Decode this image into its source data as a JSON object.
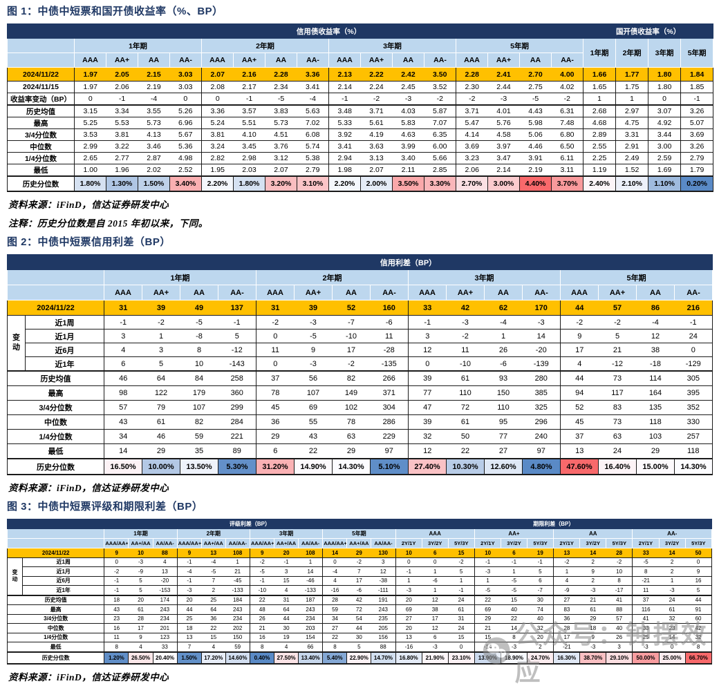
{
  "colors": {
    "header_navy": "#1F3864",
    "header_blue": "#BDD7EE",
    "highlight_orange": "#FFC000",
    "scale_low": "#5A8AC6",
    "scale_mid": "#FCFCFF",
    "scale_high": "#F8696B"
  },
  "watermark": {
    "icon": "wechat-icon",
    "text": "公众号：钟摆效应"
  },
  "figure1": {
    "title": "图 1：中债中短票和国开债收益率（%、BP）",
    "source": "资料来源：iFinD，信达证券研发中心",
    "note": "注释：历史分位数是自 2015 年初以来，下同。",
    "table": {
      "section_titles": [
        "信用债收益率（%）",
        "国开债收益率（%）"
      ],
      "tenor_groups": [
        "1年期",
        "2年期",
        "3年期",
        "5年期"
      ],
      "rating_cols": [
        "AAA",
        "AA+",
        "AA",
        "AA-"
      ],
      "gk_tenor_cols": [
        "1年期",
        "2年期",
        "3年期",
        "5年期"
      ],
      "rows": [
        {
          "label": "2024/11/22",
          "style": "current",
          "values": [
            "1.97",
            "2.05",
            "2.15",
            "3.03",
            "2.07",
            "2.16",
            "2.28",
            "3.36",
            "2.13",
            "2.22",
            "2.42",
            "3.50",
            "2.28",
            "2.41",
            "2.70",
            "4.00",
            "1.66",
            "1.77",
            "1.80",
            "1.84"
          ]
        },
        {
          "label": "2024/11/15",
          "style": "plain",
          "values": [
            "1.97",
            "2.06",
            "2.19",
            "3.03",
            "2.08",
            "2.17",
            "2.34",
            "3.41",
            "2.14",
            "2.24",
            "2.45",
            "3.52",
            "2.30",
            "2.44",
            "2.75",
            "4.02",
            "1.65",
            "1.75",
            "1.80",
            "1.85"
          ]
        },
        {
          "label": "收益率变动（BP）",
          "style": "plain",
          "values": [
            "0",
            "-1",
            "-4",
            "0",
            "0",
            "-1",
            "-5",
            "-4",
            "-1",
            "-2",
            "-3",
            "-2",
            "-2",
            "-3",
            "-5",
            "-2",
            "1",
            "1",
            "0",
            "-1"
          ]
        },
        {
          "label": "历史均值",
          "style": "plain",
          "sep": true,
          "values": [
            "3.15",
            "3.34",
            "3.55",
            "5.26",
            "3.36",
            "3.57",
            "3.83",
            "5.63",
            "3.48",
            "3.71",
            "4.03",
            "5.87",
            "3.71",
            "4.01",
            "4.43",
            "6.31",
            "2.68",
            "2.97",
            "3.07",
            "3.26"
          ]
        },
        {
          "label": "最高",
          "style": "plain",
          "values": [
            "5.25",
            "5.53",
            "5.73",
            "6.96",
            "5.24",
            "5.51",
            "5.73",
            "7.02",
            "5.33",
            "5.61",
            "5.83",
            "7.07",
            "5.47",
            "5.76",
            "5.98",
            "7.48",
            "4.68",
            "4.75",
            "4.92",
            "5.07"
          ]
        },
        {
          "label": "3/4分位数",
          "style": "plain",
          "values": [
            "3.53",
            "3.81",
            "4.13",
            "5.67",
            "3.81",
            "4.10",
            "4.51",
            "6.08",
            "3.92",
            "4.19",
            "4.63",
            "6.35",
            "4.14",
            "4.58",
            "5.06",
            "6.80",
            "2.89",
            "3.31",
            "3.44",
            "3.69"
          ]
        },
        {
          "label": "中位数",
          "style": "plain",
          "values": [
            "2.99",
            "3.22",
            "3.46",
            "5.36",
            "3.24",
            "3.45",
            "3.76",
            "5.74",
            "3.41",
            "3.63",
            "3.99",
            "6.00",
            "3.69",
            "3.97",
            "4.46",
            "6.50",
            "2.55",
            "2.91",
            "3.00",
            "3.26"
          ]
        },
        {
          "label": "1/4分位数",
          "style": "plain",
          "values": [
            "2.65",
            "2.77",
            "2.87",
            "4.98",
            "2.82",
            "2.98",
            "3.12",
            "5.38",
            "2.94",
            "3.13",
            "3.40",
            "5.66",
            "3.23",
            "3.47",
            "3.91",
            "6.11",
            "2.25",
            "2.49",
            "2.59",
            "2.79"
          ]
        },
        {
          "label": "最低",
          "style": "plain",
          "values": [
            "1.00",
            "1.96",
            "2.02",
            "2.52",
            "1.95",
            "2.03",
            "2.07",
            "2.79",
            "1.98",
            "2.07",
            "2.11",
            "2.85",
            "2.06",
            "2.14",
            "2.19",
            "3.11",
            "1.19",
            "1.52",
            "1.69",
            "1.79"
          ]
        },
        {
          "label": "历史分位数",
          "style": "pct",
          "values": [
            "1.80%",
            "1.30%",
            "1.50%",
            "3.40%",
            "2.20%",
            "1.80%",
            "3.20%",
            "3.10%",
            "2.20%",
            "2.00%",
            "3.50%",
            "3.30%",
            "2.70%",
            "3.00%",
            "4.40%",
            "3.70%",
            "2.40%",
            "2.10%",
            "1.10%",
            "0.20%"
          ]
        }
      ]
    }
  },
  "figure2": {
    "title": "图 2：中债中短票信用利差（BP）",
    "source": "资料来源：iFinD，信达证券研发中心",
    "table": {
      "section_title": "信用利差（BP）",
      "tenor_groups": [
        "1年期",
        "2年期",
        "3年期",
        "5年期"
      ],
      "rating_cols": [
        "AAA",
        "AA+",
        "AA",
        "AA-"
      ],
      "change_group_label": "变动",
      "rows": [
        {
          "label": "2024/11/22",
          "style": "current",
          "values": [
            "31",
            "39",
            "49",
            "137",
            "31",
            "39",
            "52",
            "160",
            "33",
            "42",
            "62",
            "170",
            "44",
            "57",
            "86",
            "216"
          ]
        },
        {
          "label": "近1周",
          "style": "change",
          "values": [
            "-1",
            "-2",
            "-5",
            "-1",
            "-2",
            "-3",
            "-7",
            "-6",
            "-1",
            "-3",
            "-4",
            "-3",
            "-2",
            "-2",
            "-4",
            "-1"
          ]
        },
        {
          "label": "近1月",
          "style": "change",
          "values": [
            "3",
            "1",
            "-8",
            "5",
            "0",
            "-5",
            "-10",
            "11",
            "3",
            "-2",
            "1",
            "14",
            "9",
            "5",
            "12",
            "24"
          ]
        },
        {
          "label": "近6月",
          "style": "change",
          "values": [
            "4",
            "3",
            "8",
            "-12",
            "11",
            "9",
            "17",
            "-28",
            "12",
            "11",
            "26",
            "-20",
            "17",
            "21",
            "38",
            "0"
          ]
        },
        {
          "label": "近1年",
          "style": "change",
          "values": [
            "6",
            "5",
            "10",
            "-143",
            "0",
            "-3",
            "-2",
            "-135",
            "0",
            "-10",
            "-6",
            "-139",
            "4",
            "-12",
            "-18",
            "-129"
          ]
        },
        {
          "label": "历史均值",
          "style": "plain",
          "sep": true,
          "values": [
            "46",
            "64",
            "84",
            "258",
            "37",
            "56",
            "82",
            "266",
            "39",
            "61",
            "93",
            "280",
            "44",
            "73",
            "114",
            "305"
          ]
        },
        {
          "label": "最高",
          "style": "plain",
          "values": [
            "98",
            "122",
            "179",
            "360",
            "78",
            "107",
            "149",
            "371",
            "77",
            "110",
            "150",
            "385",
            "94",
            "117",
            "164",
            "395"
          ]
        },
        {
          "label": "3/4分位数",
          "style": "plain",
          "values": [
            "57",
            "79",
            "107",
            "299",
            "45",
            "69",
            "102",
            "304",
            "47",
            "72",
            "110",
            "325",
            "52",
            "83",
            "135",
            "352"
          ]
        },
        {
          "label": "中位数",
          "style": "plain",
          "values": [
            "43",
            "61",
            "82",
            "284",
            "36",
            "55",
            "78",
            "286",
            "39",
            "61",
            "95",
            "296",
            "45",
            "73",
            "118",
            "330"
          ]
        },
        {
          "label": "1/4分位数",
          "style": "plain",
          "values": [
            "34",
            "46",
            "59",
            "221",
            "29",
            "43",
            "63",
            "229",
            "32",
            "50",
            "77",
            "240",
            "37",
            "63",
            "103",
            "257"
          ]
        },
        {
          "label": "最低",
          "style": "plain",
          "values": [
            "14",
            "29",
            "35",
            "89",
            "6",
            "22",
            "29",
            "97",
            "12",
            "22",
            "27",
            "97",
            "13",
            "24",
            "29",
            "118"
          ]
        },
        {
          "label": "历史分位数",
          "style": "pct",
          "values": [
            "16.50%",
            "10.00%",
            "13.50%",
            "5.30%",
            "31.20%",
            "14.90%",
            "14.30%",
            "5.10%",
            "27.40%",
            "10.30%",
            "12.60%",
            "4.80%",
            "47.60%",
            "16.40%",
            "15.00%",
            "14.30%"
          ]
        }
      ]
    }
  },
  "figure3": {
    "title": "图 3：中债中短票评级和期限利差（BP）",
    "source": "资料来源：iFinD，信达证券研发中心",
    "table": {
      "section_titles": [
        "评级利差（BP）",
        "期限利差（BP）"
      ],
      "rating_spread_groups": [
        "1年期",
        "2年期",
        "3年期",
        "5年期"
      ],
      "rating_spread_cols": [
        "AAA/AA+",
        "AA+/AA",
        "AA/AA-"
      ],
      "term_spread_groups": [
        "AAA",
        "AA+",
        "AA",
        "AA-"
      ],
      "term_spread_cols": [
        "2Y/1Y",
        "3Y/2Y",
        "5Y/3Y"
      ],
      "change_group_label": "变动",
      "rows": [
        {
          "label": "2024/11/22",
          "style": "current",
          "values": [
            "9",
            "10",
            "88",
            "9",
            "13",
            "108",
            "9",
            "20",
            "108",
            "14",
            "29",
            "130",
            "10",
            "6",
            "15",
            "10",
            "6",
            "19",
            "13",
            "14",
            "28",
            "33",
            "14",
            "50"
          ]
        },
        {
          "label": "近1周",
          "style": "change",
          "values": [
            "0",
            "-3",
            "4",
            "-1",
            "-4",
            "1",
            "-2",
            "-1",
            "1",
            "0",
            "-2",
            "3",
            "0",
            "0",
            "-2",
            "-1",
            "-1",
            "-1",
            "-2",
            "2",
            "-2",
            "-5",
            "2",
            "0"
          ]
        },
        {
          "label": "近1月",
          "style": "change",
          "values": [
            "-2",
            "-9",
            "13",
            "-4",
            "-5",
            "21",
            "-5",
            "3",
            "14",
            "-4",
            "7",
            "12",
            "-1",
            "1",
            "5",
            "-3",
            "1",
            "5",
            "1",
            "9",
            "10",
            "8",
            "2",
            "9"
          ]
        },
        {
          "label": "近6月",
          "style": "change",
          "values": [
            "-1",
            "5",
            "-20",
            "-1",
            "7",
            "-45",
            "-1",
            "15",
            "-46",
            "4",
            "17",
            "-38",
            "1",
            "-6",
            "1",
            "1",
            "-5",
            "6",
            "4",
            "2",
            "8",
            "-21",
            "1",
            "16"
          ]
        },
        {
          "label": "近1年",
          "style": "change",
          "values": [
            "-1",
            "5",
            "-153",
            "-3",
            "2",
            "-133",
            "-10",
            "4",
            "-133",
            "-16",
            "-6",
            "-111",
            "-3",
            "1",
            "-1",
            "-5",
            "-5",
            "-7",
            "-9",
            "-3",
            "-17",
            "11",
            "-3",
            "5"
          ]
        },
        {
          "label": "历史均值",
          "style": "plain",
          "sep": true,
          "values": [
            "18",
            "20",
            "174",
            "20",
            "25",
            "184",
            "22",
            "31",
            "187",
            "28",
            "42",
            "191",
            "20",
            "12",
            "24",
            "22",
            "15",
            "30",
            "27",
            "21",
            "41",
            "37",
            "24",
            "44"
          ]
        },
        {
          "label": "最高",
          "style": "plain",
          "values": [
            "43",
            "61",
            "243",
            "44",
            "64",
            "243",
            "48",
            "64",
            "243",
            "59",
            "72",
            "243",
            "69",
            "38",
            "61",
            "69",
            "40",
            "74",
            "83",
            "61",
            "88",
            "116",
            "61",
            "91"
          ]
        },
        {
          "label": "3/4分位数",
          "style": "plain",
          "values": [
            "23",
            "28",
            "234",
            "25",
            "36",
            "234",
            "26",
            "44",
            "234",
            "34",
            "54",
            "235",
            "27",
            "17",
            "31",
            "29",
            "22",
            "40",
            "36",
            "29",
            "57",
            "41",
            "32",
            "60"
          ]
        },
        {
          "label": "中位数",
          "style": "plain",
          "values": [
            "16",
            "17",
            "201",
            "18",
            "22",
            "202",
            "21",
            "30",
            "203",
            "27",
            "44",
            "205",
            "20",
            "12",
            "24",
            "21",
            "14",
            "32",
            "28",
            "18",
            "40",
            "33",
            "23",
            "42"
          ]
        },
        {
          "label": "1/4分位数",
          "style": "plain",
          "values": [
            "11",
            "9",
            "123",
            "13",
            "15",
            "150",
            "16",
            "19",
            "154",
            "22",
            "30",
            "156",
            "13",
            "6",
            "15",
            "15",
            "8",
            "20",
            "17",
            "9",
            "26",
            "25",
            "14",
            "32"
          ]
        },
        {
          "label": "最低",
          "style": "plain",
          "values": [
            "8",
            "4",
            "33",
            "7",
            "4",
            "59",
            "8",
            "4",
            "66",
            "8",
            "5",
            "88",
            "-16",
            "-3",
            "0",
            "-14",
            "-3",
            "2",
            "-21",
            "-3",
            "3",
            "-3",
            "0",
            "8"
          ]
        },
        {
          "label": "历史分位数",
          "style": "pct",
          "values": [
            "1.20%",
            "26.50%",
            "20.40%",
            "1.50%",
            "17.20%",
            "14.60%",
            "0.40%",
            "27.50%",
            "13.40%",
            "5.40%",
            "22.90%",
            "14.70%",
            "16.80%",
            "21.90%",
            "23.10%",
            "13.90%",
            "18.90%",
            "24.70%",
            "16.30%",
            "38.70%",
            "29.10%",
            "50.00%",
            "25.00%",
            "66.70%"
          ]
        }
      ]
    }
  }
}
